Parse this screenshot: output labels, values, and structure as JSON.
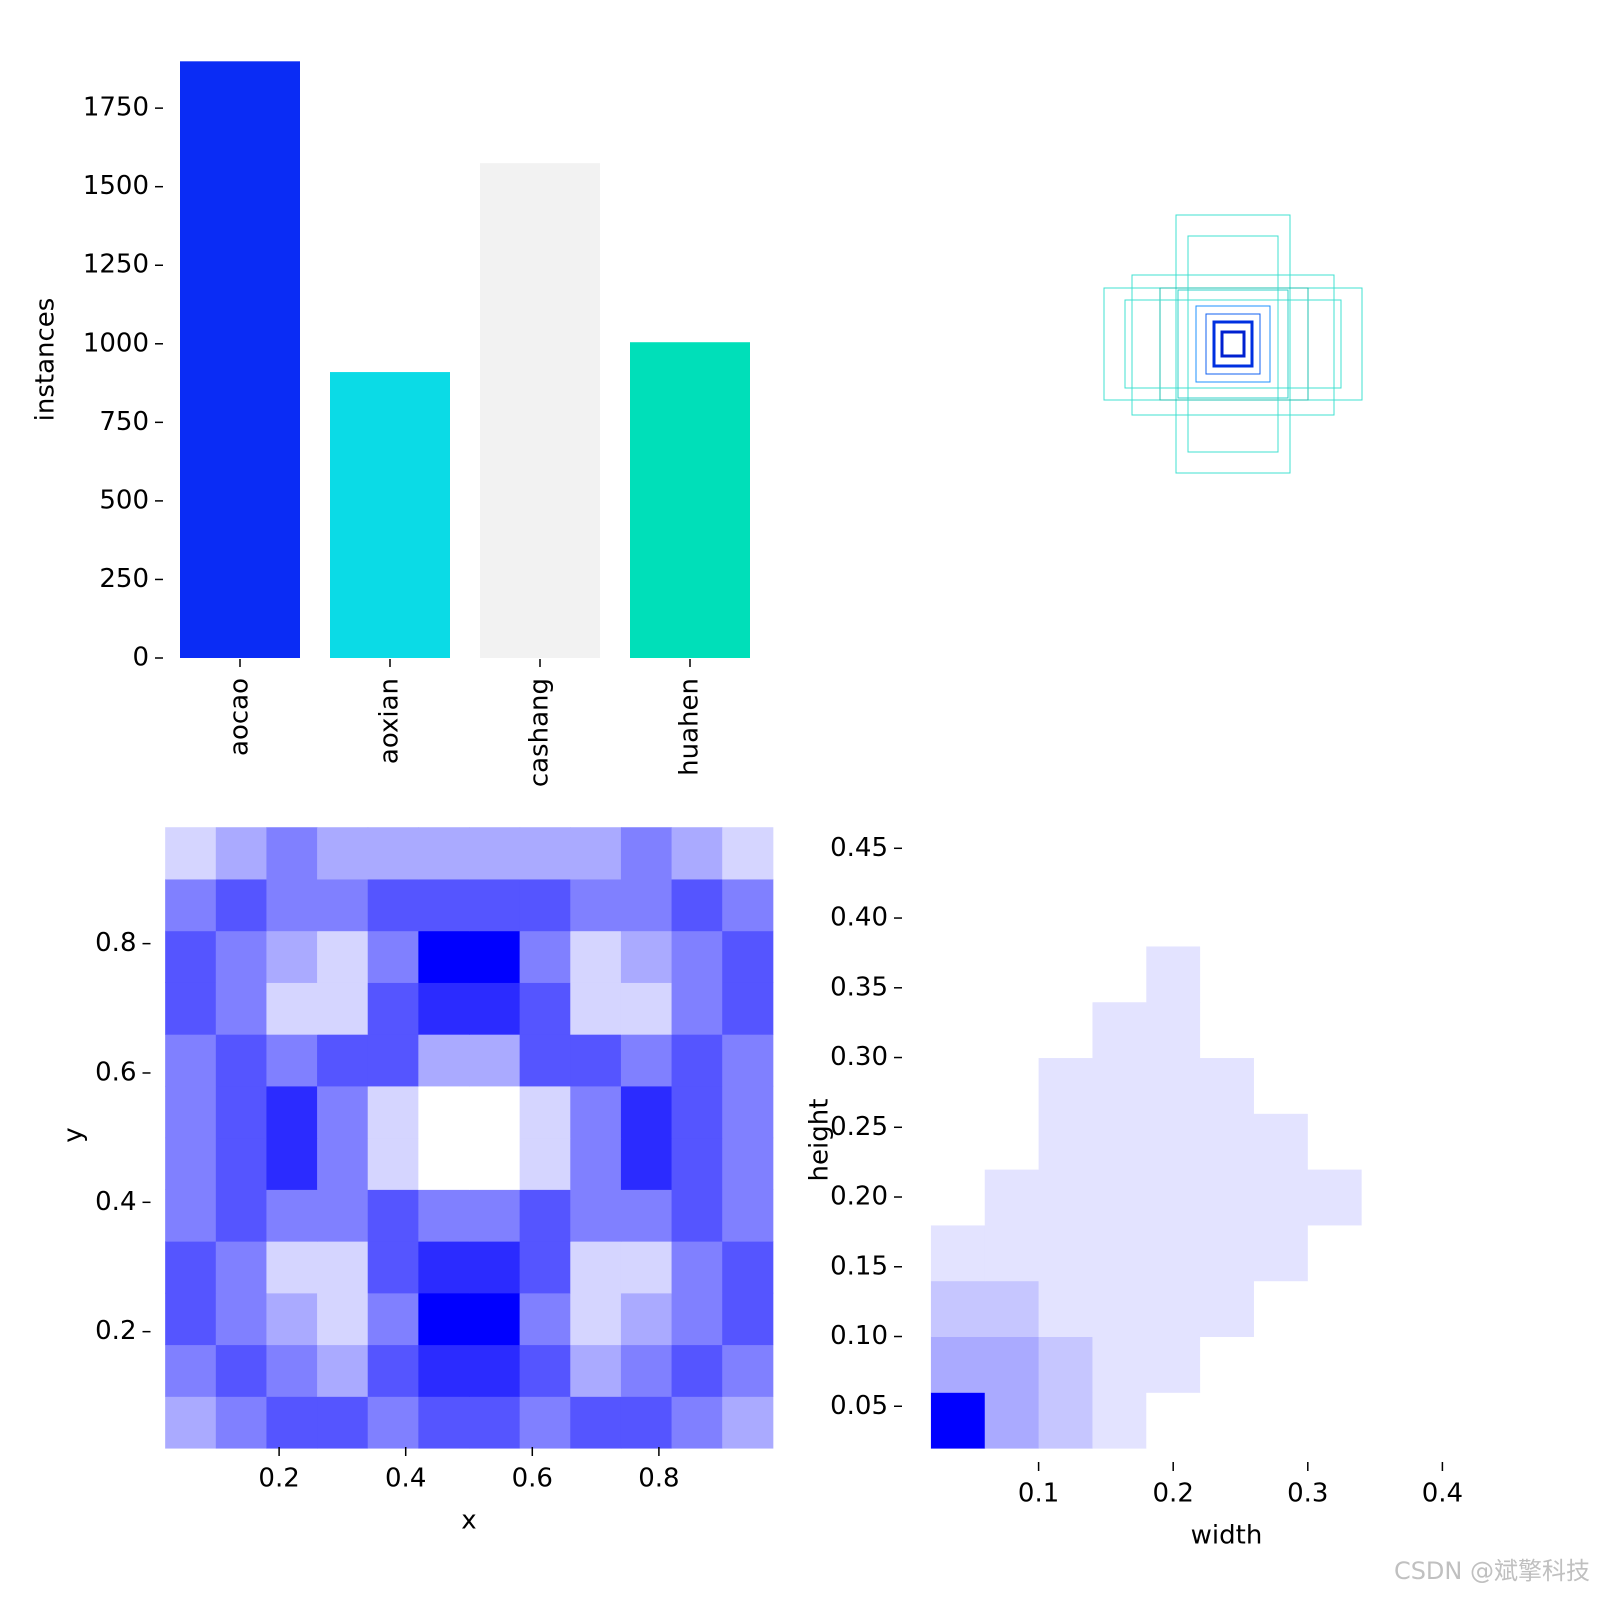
{
  "chart_data": [
    {
      "type": "bar",
      "ylabel": "instances",
      "categories": [
        "aocao",
        "aoxian",
        "cashang",
        "huahen"
      ],
      "values": [
        1899,
        910,
        1575,
        1005
      ],
      "colors": [
        "#0a2cf5",
        "#0bdbe6",
        "#f2f2f2",
        "#00dfb9"
      ],
      "ylim": [
        0,
        1900
      ],
      "yticks": [
        0,
        250,
        500,
        750,
        1000,
        1250,
        1500,
        1750
      ]
    },
    {
      "type": "heatmap",
      "xlabel": "x",
      "ylabel": "y",
      "color": "#0000ff",
      "xlim": [
        0,
        1
      ],
      "ylim": [
        0,
        1
      ],
      "xticks": [
        0.2,
        0.4,
        0.6,
        0.8
      ],
      "yticks": [
        0.2,
        0.4,
        0.6,
        0.8
      ],
      "xbins": [
        0.02,
        0.1,
        0.18,
        0.26,
        0.34,
        0.42,
        0.5,
        0.58,
        0.66,
        0.74,
        0.82,
        0.9,
        0.98
      ],
      "ybins": [
        0.02,
        0.1,
        0.18,
        0.26,
        0.34,
        0.42,
        0.5,
        0.58,
        0.66,
        0.74,
        0.82,
        0.9,
        0.98
      ],
      "values": [
        [
          2,
          3,
          4,
          4,
          3,
          4,
          4,
          3,
          4,
          4,
          3,
          2
        ],
        [
          3,
          4,
          3,
          2,
          4,
          5,
          5,
          4,
          2,
          3,
          4,
          3
        ],
        [
          4,
          3,
          2,
          1,
          3,
          6,
          6,
          3,
          1,
          2,
          3,
          4
        ],
        [
          4,
          3,
          1,
          1,
          4,
          5,
          5,
          4,
          1,
          1,
          3,
          4
        ],
        [
          3,
          4,
          3,
          3,
          4,
          3,
          3,
          4,
          3,
          3,
          4,
          3
        ],
        [
          3,
          4,
          5,
          3,
          1,
          0,
          0,
          1,
          3,
          5,
          4,
          3
        ],
        [
          3,
          4,
          5,
          3,
          1,
          0,
          0,
          1,
          3,
          5,
          4,
          3
        ],
        [
          3,
          4,
          3,
          4,
          4,
          2,
          2,
          4,
          4,
          3,
          4,
          3
        ],
        [
          4,
          3,
          1,
          1,
          4,
          5,
          5,
          4,
          1,
          1,
          3,
          4
        ],
        [
          4,
          3,
          2,
          1,
          3,
          6,
          6,
          3,
          1,
          2,
          3,
          4
        ],
        [
          3,
          4,
          3,
          3,
          4,
          4,
          4,
          4,
          3,
          3,
          4,
          3
        ],
        [
          1,
          2,
          3,
          2,
          2,
          2,
          2,
          2,
          2,
          3,
          2,
          1
        ]
      ]
    },
    {
      "type": "heatmap",
      "xlabel": "width",
      "ylabel": "height",
      "color": "#0000ff",
      "xlim": [
        0,
        0.5
      ],
      "ylim": [
        0,
        0.47
      ],
      "xticks": [
        0.1,
        0.2,
        0.3,
        0.4
      ],
      "yticks": [
        0.05,
        {
          "value": 0.1,
          "label": "0.10"
        },
        0.15,
        {
          "value": 0.2,
          "label": "0.20"
        },
        0.25,
        {
          "value": 0.3,
          "label": "0.30"
        },
        0.35,
        {
          "value": 0.4,
          "label": "0.40"
        },
        0.45
      ],
      "xbins": [
        0.02,
        0.06,
        0.1,
        0.14,
        0.18,
        0.22,
        0.26,
        0.3,
        0.34,
        0.38,
        0.42,
        0.46
      ],
      "ybins": [
        0.02,
        0.06,
        0.1,
        0.14,
        0.18,
        0.22,
        0.26,
        0.3,
        0.34,
        0.38,
        0.42,
        0.46
      ],
      "values": [
        [
          9,
          3,
          2,
          1,
          0,
          0,
          0,
          0,
          0,
          0,
          0
        ],
        [
          3,
          3,
          2,
          1,
          1,
          0,
          0,
          0,
          0,
          0,
          0
        ],
        [
          2,
          2,
          1,
          1,
          1,
          1,
          0,
          0,
          0,
          0,
          0
        ],
        [
          1,
          1,
          1,
          1,
          1,
          1,
          1,
          0,
          0,
          0,
          0
        ],
        [
          0,
          1,
          1,
          1,
          1,
          1,
          1,
          1,
          0,
          0,
          0
        ],
        [
          0,
          0,
          1,
          1,
          1,
          1,
          1,
          0,
          0,
          0,
          0
        ],
        [
          0,
          0,
          1,
          1,
          1,
          1,
          0,
          0,
          0,
          0,
          0
        ],
        [
          0,
          0,
          0,
          1,
          1,
          0,
          0,
          0,
          0,
          0,
          0
        ],
        [
          0,
          0,
          0,
          0,
          1,
          0,
          0,
          0,
          0,
          0,
          0
        ],
        [
          0,
          0,
          0,
          0,
          0,
          0,
          0,
          0,
          0,
          0,
          0
        ],
        [
          0,
          0,
          0,
          0,
          0,
          0,
          0,
          0,
          0,
          0,
          0
        ]
      ]
    }
  ],
  "watermark": "CSDN @斌擎科技"
}
